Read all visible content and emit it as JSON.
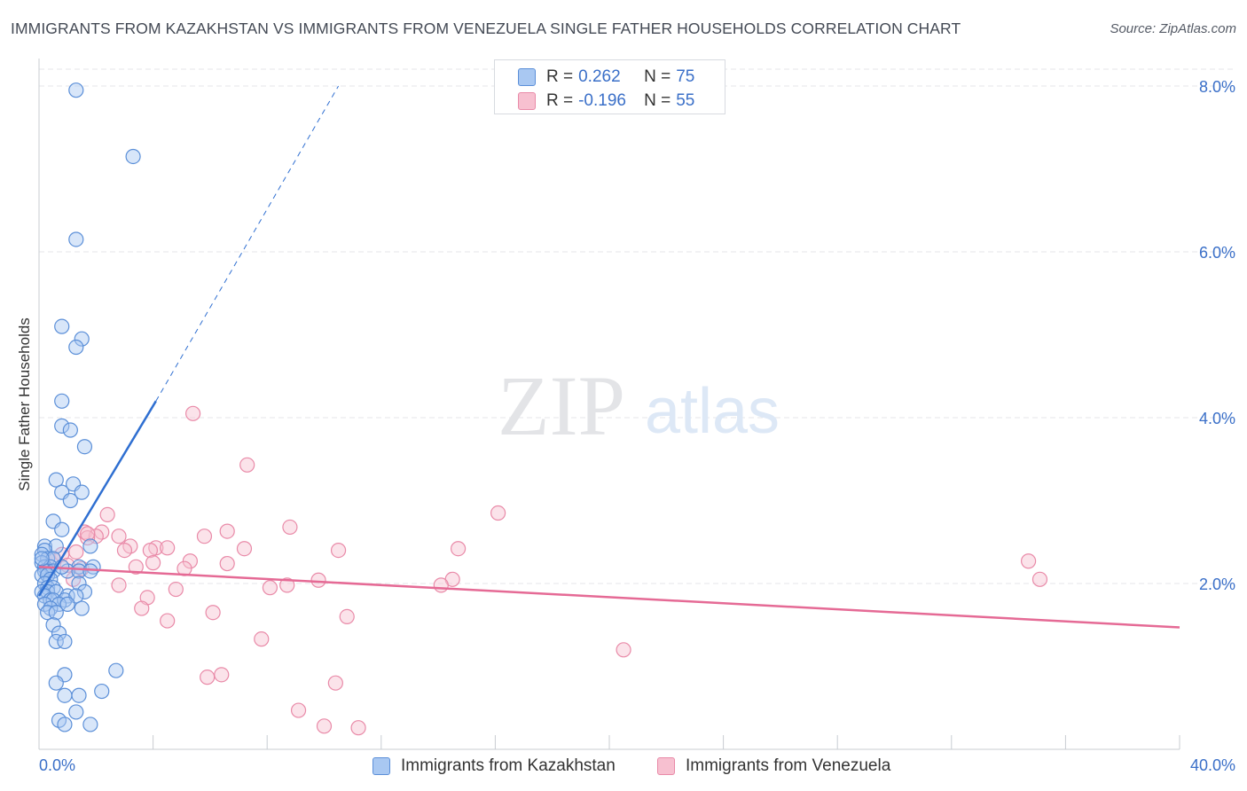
{
  "title": "IMMIGRANTS FROM KAZAKHSTAN VS IMMIGRANTS FROM VENEZUELA SINGLE FATHER HOUSEHOLDS CORRELATION CHART",
  "source": "Source: ZipAtlas.com",
  "watermark": {
    "zip": "ZIP",
    "atlas": "atlas"
  },
  "legend": {
    "r_label": "R =",
    "n_label": "N =",
    "kazakhstan": {
      "r": "0.262",
      "n": "75"
    },
    "venezuela": {
      "r": "-0.196",
      "n": "55"
    }
  },
  "colors": {
    "kazakhstan_fill": "#a9c8f2",
    "kazakhstan_stroke": "#5b8fd8",
    "kazakhstan_line": "#2f6fd1",
    "venezuela_fill": "#f7c0d0",
    "venezuela_stroke": "#e98aa8",
    "venezuela_line": "#e56a95",
    "axis_text": "#3a6fc8",
    "grid": "#e4e6ea"
  },
  "chart_data": {
    "type": "scatter",
    "title": "IMMIGRANTS FROM KAZAKHSTAN VS IMMIGRANTS FROM VENEZUELA SINGLE FATHER HOUSEHOLDS CORRELATION CHART",
    "xlabel": "",
    "ylabel": "Single Father Households",
    "xlim": [
      0,
      40
    ],
    "ylim": [
      0,
      8.3
    ],
    "x_tick_labels": [
      "0.0%",
      "40.0%"
    ],
    "y_ticks": [
      2,
      4,
      6,
      8
    ],
    "y_tick_labels": [
      "2.0%",
      "4.0%",
      "6.0%",
      "8.0%"
    ],
    "grid": true,
    "series": [
      {
        "name": "Immigrants from Kazakhstan",
        "trend": {
          "x": [
            0,
            4.1
          ],
          "y": [
            1.85,
            4.2
          ]
        },
        "trend_dashed": {
          "x": [
            4.1,
            10.5
          ],
          "y": [
            4.2,
            8.0
          ]
        },
        "points": [
          [
            1.3,
            7.95
          ],
          [
            3.3,
            7.15
          ],
          [
            1.3,
            6.15
          ],
          [
            0.8,
            5.1
          ],
          [
            1.5,
            4.95
          ],
          [
            1.3,
            4.85
          ],
          [
            0.8,
            4.2
          ],
          [
            0.8,
            3.9
          ],
          [
            1.1,
            3.85
          ],
          [
            1.6,
            3.65
          ],
          [
            0.6,
            3.25
          ],
          [
            1.2,
            3.2
          ],
          [
            0.8,
            3.1
          ],
          [
            1.5,
            3.1
          ],
          [
            1.1,
            3.0
          ],
          [
            0.5,
            2.75
          ],
          [
            0.8,
            2.65
          ],
          [
            0.2,
            2.45
          ],
          [
            0.6,
            2.45
          ],
          [
            1.8,
            2.45
          ],
          [
            0.2,
            2.4
          ],
          [
            0.1,
            2.35
          ],
          [
            0.3,
            2.3
          ],
          [
            0.5,
            2.3
          ],
          [
            0.1,
            2.25
          ],
          [
            0.2,
            2.2
          ],
          [
            0.4,
            2.2
          ],
          [
            0.3,
            2.15
          ],
          [
            1.4,
            2.2
          ],
          [
            1.9,
            2.2
          ],
          [
            0.2,
            2.15
          ],
          [
            0.5,
            2.15
          ],
          [
            0.1,
            2.1
          ],
          [
            0.3,
            2.1
          ],
          [
            1.0,
            2.15
          ],
          [
            1.4,
            2.15
          ],
          [
            1.8,
            2.15
          ],
          [
            0.4,
            2.05
          ],
          [
            1.4,
            2.0
          ],
          [
            0.2,
            2.0
          ],
          [
            0.3,
            1.95
          ],
          [
            0.5,
            1.95
          ],
          [
            0.1,
            1.9
          ],
          [
            0.3,
            1.9
          ],
          [
            0.6,
            1.9
          ],
          [
            1.6,
            1.9
          ],
          [
            0.2,
            1.85
          ],
          [
            1.0,
            1.85
          ],
          [
            0.4,
            1.8
          ],
          [
            0.5,
            1.8
          ],
          [
            0.9,
            1.8
          ],
          [
            1.3,
            1.85
          ],
          [
            0.2,
            1.75
          ],
          [
            0.7,
            1.75
          ],
          [
            1.0,
            1.75
          ],
          [
            0.4,
            1.7
          ],
          [
            1.5,
            1.7
          ],
          [
            0.3,
            1.65
          ],
          [
            0.6,
            1.65
          ],
          [
            0.5,
            1.5
          ],
          [
            0.7,
            1.4
          ],
          [
            0.6,
            1.3
          ],
          [
            0.9,
            1.3
          ],
          [
            2.7,
            0.95
          ],
          [
            0.9,
            0.9
          ],
          [
            0.6,
            0.8
          ],
          [
            2.2,
            0.7
          ],
          [
            1.4,
            0.65
          ],
          [
            0.9,
            0.65
          ],
          [
            1.3,
            0.45
          ],
          [
            0.7,
            0.35
          ],
          [
            0.9,
            0.3
          ],
          [
            1.8,
            0.3
          ],
          [
            0.1,
            2.3
          ],
          [
            0.8,
            2.2
          ]
        ]
      },
      {
        "name": "Immigrants from Venezuela",
        "trend": {
          "x": [
            0,
            40
          ],
          "y": [
            2.2,
            1.47
          ]
        },
        "points": [
          [
            5.4,
            4.05
          ],
          [
            7.3,
            3.43
          ],
          [
            2.4,
            2.83
          ],
          [
            16.1,
            2.85
          ],
          [
            2.2,
            2.62
          ],
          [
            1.6,
            2.62
          ],
          [
            8.8,
            2.68
          ],
          [
            2.0,
            2.57
          ],
          [
            2.8,
            2.57
          ],
          [
            5.8,
            2.57
          ],
          [
            6.6,
            2.63
          ],
          [
            1.7,
            2.55
          ],
          [
            1.7,
            2.6
          ],
          [
            3.2,
            2.45
          ],
          [
            3.0,
            2.4
          ],
          [
            4.1,
            2.43
          ],
          [
            4.5,
            2.43
          ],
          [
            7.2,
            2.42
          ],
          [
            3.9,
            2.4
          ],
          [
            10.5,
            2.4
          ],
          [
            14.7,
            2.42
          ],
          [
            1.3,
            2.38
          ],
          [
            0.8,
            2.35
          ],
          [
            0.5,
            2.3
          ],
          [
            3.4,
            2.2
          ],
          [
            4.0,
            2.25
          ],
          [
            5.3,
            2.27
          ],
          [
            6.6,
            2.24
          ],
          [
            1.0,
            2.22
          ],
          [
            34.7,
            2.27
          ],
          [
            5.1,
            2.18
          ],
          [
            1.5,
            2.18
          ],
          [
            9.8,
            2.04
          ],
          [
            14.5,
            2.05
          ],
          [
            35.1,
            2.05
          ],
          [
            2.8,
            1.98
          ],
          [
            8.1,
            1.95
          ],
          [
            8.7,
            1.98
          ],
          [
            14.1,
            1.98
          ],
          [
            4.8,
            1.93
          ],
          [
            3.8,
            1.83
          ],
          [
            3.6,
            1.7
          ],
          [
            6.1,
            1.65
          ],
          [
            10.8,
            1.6
          ],
          [
            4.5,
            1.55
          ],
          [
            7.8,
            1.33
          ],
          [
            20.5,
            1.2
          ],
          [
            5.9,
            0.87
          ],
          [
            6.4,
            0.9
          ],
          [
            10.4,
            0.8
          ],
          [
            9.1,
            0.47
          ],
          [
            10.0,
            0.28
          ],
          [
            11.2,
            0.26
          ],
          [
            0.3,
            2.3
          ],
          [
            1.2,
            2.05
          ]
        ]
      }
    ]
  },
  "bottom_legend": {
    "kazakhstan": "Immigrants from Kazakhstan",
    "venezuela": "Immigrants from Venezuela"
  }
}
